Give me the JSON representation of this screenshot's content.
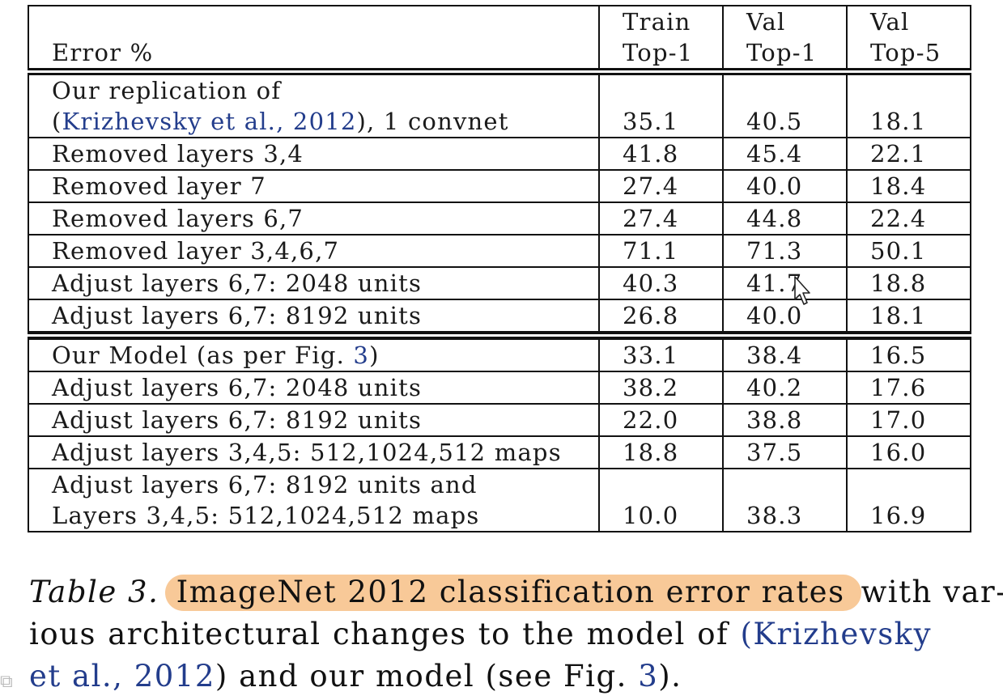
{
  "table": {
    "header": {
      "error_label": "Error %",
      "col1": [
        "Train",
        "Top-1"
      ],
      "col2": [
        "Val",
        "Top-1"
      ],
      "col3": [
        "Val",
        "Top-5"
      ]
    },
    "group1": {
      "first_row": {
        "line1": "Our replication of",
        "cite": "Krizhevsky et al., 2012",
        "suffix": "), 1 convnet",
        "open_paren": "(",
        "values": [
          "35.1",
          "40.5",
          "18.1"
        ]
      },
      "rows": [
        {
          "label": "Removed layers 3,4",
          "values": [
            "41.8",
            "45.4",
            "22.1"
          ]
        },
        {
          "label": "Removed layer 7",
          "values": [
            "27.4",
            "40.0",
            "18.4"
          ]
        },
        {
          "label": "Removed layers 6,7",
          "values": [
            "27.4",
            "44.8",
            "22.4"
          ]
        },
        {
          "label": "Removed layer 3,4,6,7",
          "values": [
            "71.1",
            "71.3",
            "50.1"
          ]
        },
        {
          "label": "Adjust layers 6,7: 2048 units",
          "values": [
            "40.3",
            "41.7",
            "18.8"
          ]
        },
        {
          "label": "Adjust layers 6,7: 8192 units",
          "values": [
            "26.8",
            "40.0",
            "18.1"
          ]
        }
      ]
    },
    "group2": {
      "first_row": {
        "prefix": "Our Model (as per Fig. ",
        "fig_ref": "3",
        "suffix": ")",
        "values": [
          "33.1",
          "38.4",
          "16.5"
        ]
      },
      "rows": [
        {
          "label": "Adjust layers 6,7: 2048 units",
          "values": [
            "38.2",
            "40.2",
            "17.6"
          ]
        },
        {
          "label": "Adjust layers 6,7: 8192 units",
          "values": [
            "22.0",
            "38.8",
            "17.0"
          ]
        },
        {
          "label": "Adjust layers 3,4,5: 512,1024,512 maps",
          "values": [
            "18.8",
            "37.5",
            "16.0"
          ]
        }
      ],
      "last_row": {
        "line1": "Adjust layers 6,7: 8192 units and",
        "line2": "Layers 3,4,5: 512,1024,512 maps",
        "values": [
          "10.0",
          "38.3",
          "16.9"
        ]
      }
    }
  },
  "caption": {
    "label": "Table 3.",
    "highlighted": "ImageNet 2012 classification error rates",
    "line1_rest": "with var-",
    "line2_words": [
      "ious",
      "architectural",
      "changes",
      "to",
      "the",
      "model",
      "of",
      "(Krizhevsky"
    ],
    "line3_cite": "et al., 2012",
    "line3_mid": ") and our model (see Fig. ",
    "line3_fig": "3",
    "line3_end": ").",
    "highlight_color": "#f8c998",
    "cite_color": "#233d8c"
  }
}
